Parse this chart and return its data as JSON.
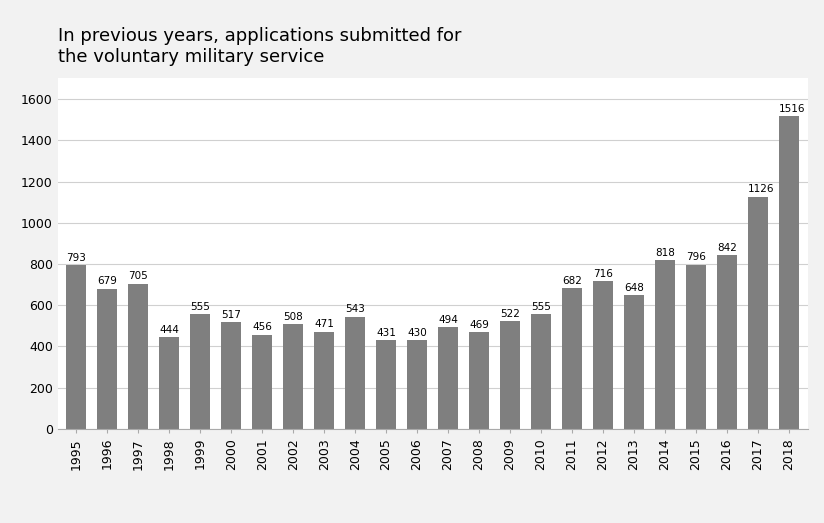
{
  "years": [
    1995,
    1996,
    1997,
    1998,
    1999,
    2000,
    2001,
    2002,
    2003,
    2004,
    2005,
    2006,
    2007,
    2008,
    2009,
    2010,
    2011,
    2012,
    2013,
    2014,
    2015,
    2016,
    2017,
    2018
  ],
  "values": [
    793,
    679,
    705,
    444,
    555,
    517,
    456,
    508,
    471,
    543,
    431,
    430,
    494,
    469,
    522,
    555,
    682,
    716,
    648,
    818,
    796,
    842,
    1126,
    1516
  ],
  "bar_color": "#7f7f7f",
  "title_line1": "In previous years, applications submitted for",
  "title_line2": "the voluntary military service",
  "ylim": [
    0,
    1700
  ],
  "yticks": [
    0,
    200,
    400,
    600,
    800,
    1000,
    1200,
    1400,
    1600
  ],
  "background_color": "#f2f2f2",
  "plot_background": "#ffffff",
  "label_fontsize": 7.5,
  "title_fontsize": 13,
  "axis_label_fontsize": 9,
  "bar_width": 0.65
}
